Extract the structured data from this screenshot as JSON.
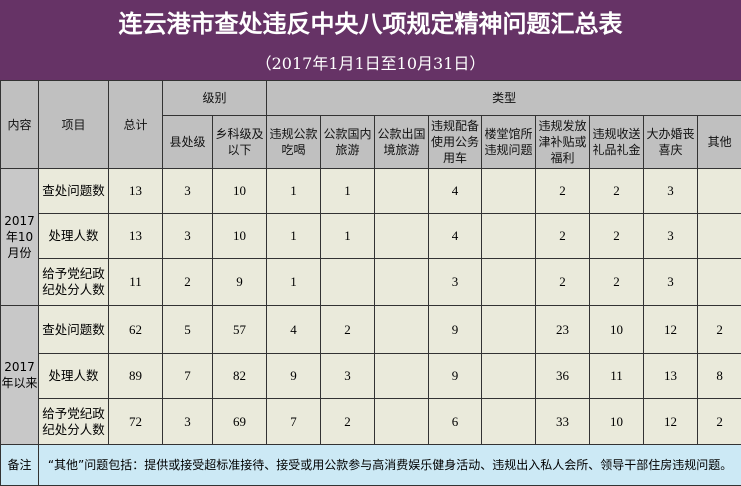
{
  "title": "连云港市查处违反中央八项规定精神问题汇总表",
  "subtitle": "（2017年1月1日至10月31日）",
  "header": {
    "content": "内容",
    "item": "项目",
    "total": "总计",
    "level_group": "级别",
    "type_group": "类型",
    "levels": [
      "县处级",
      "乡科级及以下"
    ],
    "types": [
      "违规公款吃喝",
      "公款国内旅游",
      "公款出国境旅游",
      "违规配备使用公务用车",
      "楼堂馆所违规问题",
      "违规发放津补贴或福利",
      "违规收送礼品礼金",
      "大办婚丧喜庆",
      "其他"
    ]
  },
  "groups": [
    {
      "label": "2017年10月份",
      "rows": [
        {
          "item": "查处问题数",
          "values": [
            "13",
            "3",
            "10",
            "1",
            "1",
            "",
            "4",
            "",
            "2",
            "2",
            "3",
            ""
          ]
        },
        {
          "item": "处理人数",
          "values": [
            "13",
            "3",
            "10",
            "1",
            "1",
            "",
            "4",
            "",
            "2",
            "2",
            "3",
            ""
          ]
        },
        {
          "item": "给予党纪政纪处分人数",
          "values": [
            "11",
            "2",
            "9",
            "1",
            "",
            "",
            "3",
            "",
            "2",
            "2",
            "3",
            ""
          ]
        }
      ]
    },
    {
      "label": "2017年以来",
      "rows": [
        {
          "item": "查处问题数",
          "values": [
            "62",
            "5",
            "57",
            "4",
            "2",
            "",
            "9",
            "",
            "23",
            "10",
            "12",
            "2"
          ]
        },
        {
          "item": "处理人数",
          "values": [
            "89",
            "7",
            "82",
            "9",
            "3",
            "",
            "9",
            "",
            "36",
            "11",
            "13",
            "8"
          ]
        },
        {
          "item": "给予党纪政纪处分人数",
          "values": [
            "72",
            "3",
            "69",
            "7",
            "2",
            "",
            "6",
            "",
            "33",
            "10",
            "12",
            "2"
          ]
        }
      ]
    }
  ],
  "note": {
    "label": "备注",
    "text": "“其他”问题包括：提供或接受超标准接待、接受或用公款参与高消费娱乐健身活动、违规出入私人会所、领导干部住房违规问题。"
  },
  "colors": {
    "title_band": "#663366",
    "header": "#c0c0c0",
    "data_cell": "#eaeadb",
    "note_row": "#cce9f5"
  }
}
